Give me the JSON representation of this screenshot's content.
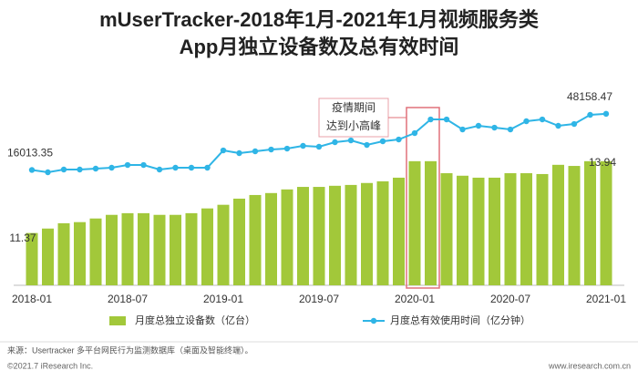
{
  "chart_data": {
    "type": "bar_line",
    "title": [
      "mUserTracker-2018年1月-2021年1月视频服务类",
      "App月独立设备数及总有效时间"
    ],
    "categories": [
      "2018-01",
      null,
      null,
      null,
      null,
      null,
      "2018-07",
      null,
      null,
      null,
      null,
      null,
      "2019-01",
      null,
      null,
      null,
      null,
      null,
      "2019-07",
      null,
      null,
      null,
      null,
      null,
      "2020-01",
      null,
      null,
      null,
      null,
      null,
      "2020-07",
      null,
      null,
      null,
      null,
      null,
      "2021-01"
    ],
    "series": [
      {
        "name": "月度总独立设备数（亿台）",
        "type": "bar",
        "color": "#a2c83a",
        "axis": "y",
        "values": [
          11.37,
          11.53,
          11.72,
          11.76,
          11.89,
          12.02,
          12.08,
          12.08,
          12.02,
          12.02,
          12.08,
          12.25,
          12.38,
          12.6,
          12.73,
          12.8,
          12.93,
          13.02,
          13.02,
          13.06,
          13.09,
          13.16,
          13.22,
          13.35,
          13.94,
          13.94,
          13.51,
          13.42,
          13.35,
          13.35,
          13.51,
          13.51,
          13.48,
          13.81,
          13.77,
          13.94,
          13.94
        ]
      },
      {
        "name": "月度总有效使用时间（亿分钟）",
        "type": "line",
        "color": "#2fb5e6",
        "axis": "y2",
        "values": [
          16013.35,
          14690,
          16256,
          16256,
          16780,
          17300,
          18860,
          18860,
          16256,
          17300,
          17300,
          17300,
          27210,
          25650,
          26690,
          27730,
          28250,
          29820,
          29300,
          31910,
          32950,
          30340,
          32430,
          33470,
          37120,
          44950,
          44950,
          39210,
          41300,
          40250,
          39210,
          43910,
          44950,
          41300,
          42340,
          47560,
          48158.47
        ]
      }
    ],
    "ylim": [
      9.5,
      17
    ],
    "y2lim": [
      -50000,
      70000
    ],
    "annotation": [
      "疫情期间",
      "达到小高峰"
    ],
    "source": "来源：Usertracker 多平台网民行为监测数据库（桌面及智能终端）。",
    "footer_left": "©2021.7 iResearch Inc.",
    "footer_right": "www.iresearch.com.cn"
  }
}
